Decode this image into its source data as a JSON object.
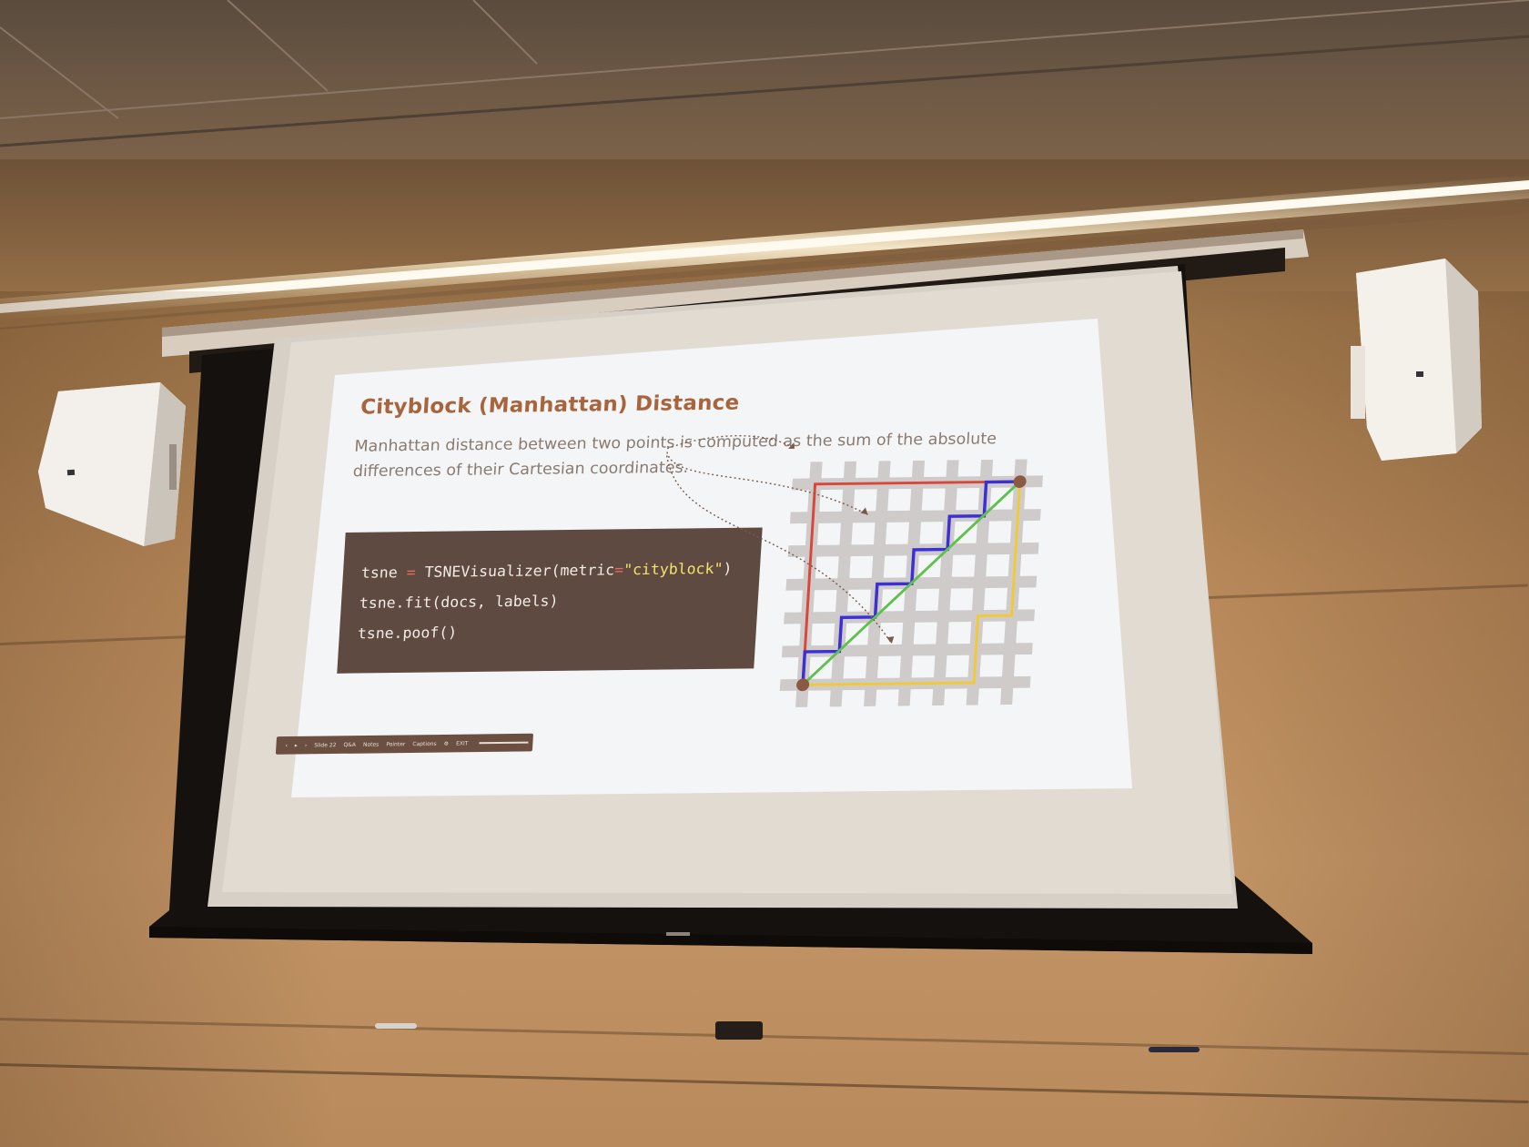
{
  "slide": {
    "title": "Cityblock (Manhattan) Distance",
    "body_line1": "Manhattan distance between two points is computed as the sum of the absolute",
    "body_line2": "differences of their Cartesian coordinates.",
    "code": {
      "line1": {
        "var": "tsne",
        "op": "=",
        "call": "TSNEVisualizer(metric",
        "eq": "=",
        "arg": "\"cityblock\"",
        "close": ")"
      },
      "line2": "tsne.fit(docs, labels)",
      "line3": "tsne.poof()"
    },
    "figure": {
      "grid_lines": 7,
      "path_colors": {
        "red": "#d9473b",
        "blue": "#3c2fd6",
        "yellow": "#f0c93a",
        "green": "#5dc14b"
      },
      "point_color": "#8b5a43",
      "grid_color": "#cfcbcb"
    }
  },
  "toolbar": {
    "prev": "‹",
    "play": "▸",
    "next": "›",
    "slide_label": "Slide 22",
    "qa_label": "Q&A",
    "notes_label": "Notes",
    "pointer_label": "Pointer",
    "captions_label": "Captions",
    "exit_label": "EXIT"
  },
  "colors": {
    "title": "#a8643c",
    "body_text": "#8a7a70",
    "code_bg": "#5f4a41",
    "code_text": "#f1ece6",
    "code_string": "#f2e36b",
    "code_operator": "#e06a5a"
  }
}
